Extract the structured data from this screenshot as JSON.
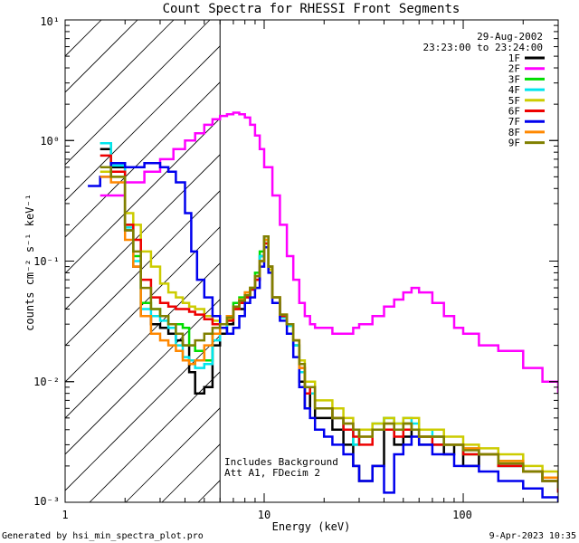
{
  "chart_data": {
    "type": "line",
    "title": "Count Spectra for RHESSI Front Segments",
    "xlabel": "Energy (keV)",
    "ylabel": "counts cm⁻² s⁻¹ keV⁻¹",
    "xscale": "log",
    "yscale": "log",
    "xlim": [
      1,
      300
    ],
    "ylim": [
      0.001,
      10
    ],
    "x_tick_labels": [
      "1",
      "10",
      "100"
    ],
    "y_tick_labels": [
      "10⁻³",
      "10⁻²",
      "10⁻¹",
      "10⁰",
      "10¹"
    ],
    "date": "29-Aug-2002",
    "time_range": "23:23:00 to 23:24:00",
    "annotation_lines": [
      "Includes Background",
      "Att A1, FDecim 2"
    ],
    "hatched_region_max_keV": 6,
    "footer_left": "Generated by hsi_min_spectra_plot.pro",
    "footer_right": "9-Apr-2023 10:35",
    "series": [
      {
        "name": "1F",
        "color": "#000000",
        "x": [
          1.5,
          1.7,
          2.0,
          2.2,
          2.4,
          2.7,
          3.0,
          3.3,
          3.6,
          3.9,
          4.2,
          4.5,
          5.0,
          5.5,
          6.0,
          6.5,
          7.0,
          7.5,
          8.0,
          8.5,
          9.0,
          9.5,
          10.0,
          10.5,
          11.0,
          12.0,
          13.0,
          14,
          15,
          16,
          17,
          18,
          20,
          22,
          25,
          28,
          30,
          35,
          40,
          45,
          50,
          55,
          60,
          70,
          80,
          90,
          100,
          120,
          150,
          200,
          250,
          300
        ],
        "values": [
          0.85,
          0.6,
          0.18,
          0.09,
          0.035,
          0.03,
          0.028,
          0.025,
          0.022,
          0.02,
          0.012,
          0.008,
          0.009,
          0.02,
          0.025,
          0.03,
          0.04,
          0.04,
          0.05,
          0.06,
          0.07,
          0.11,
          0.16,
          0.09,
          0.05,
          0.035,
          0.03,
          0.02,
          0.01,
          0.006,
          0.008,
          0.005,
          0.005,
          0.004,
          0.003,
          0.002,
          0.0015,
          0.002,
          0.004,
          0.003,
          0.0035,
          0.004,
          0.003,
          0.003,
          0.0025,
          0.003,
          0.002,
          0.0025,
          0.002,
          0.0018,
          0.0015,
          0.0012
        ]
      },
      {
        "name": "2F",
        "color": "#ff00ff",
        "x": [
          1.5,
          2.0,
          2.5,
          3.0,
          3.5,
          4.0,
          4.5,
          5.0,
          5.5,
          6.0,
          6.5,
          7.0,
          7.5,
          8.0,
          8.5,
          9.0,
          9.5,
          10,
          11,
          12,
          13,
          14,
          15,
          16,
          17,
          18,
          20,
          22,
          25,
          28,
          30,
          35,
          40,
          45,
          50,
          55,
          60,
          70,
          80,
          90,
          100,
          120,
          150,
          200,
          250,
          300
        ],
        "values": [
          0.35,
          0.45,
          0.55,
          0.7,
          0.85,
          1.0,
          1.15,
          1.35,
          1.5,
          1.6,
          1.65,
          1.7,
          1.65,
          1.55,
          1.35,
          1.1,
          0.85,
          0.6,
          0.35,
          0.2,
          0.11,
          0.07,
          0.045,
          0.035,
          0.03,
          0.028,
          0.028,
          0.025,
          0.025,
          0.028,
          0.03,
          0.035,
          0.042,
          0.048,
          0.055,
          0.06,
          0.055,
          0.045,
          0.035,
          0.028,
          0.025,
          0.02,
          0.018,
          0.013,
          0.01,
          0.008
        ]
      },
      {
        "name": "3F",
        "color": "#00dd00",
        "x": [
          1.5,
          1.7,
          2.0,
          2.2,
          2.4,
          2.7,
          3.0,
          3.3,
          3.6,
          3.9,
          4.2,
          4.5,
          5.0,
          5.5,
          6.0,
          6.5,
          7.0,
          7.5,
          8.0,
          8.5,
          9.0,
          9.5,
          10.0,
          10.5,
          11.0,
          12.0,
          13.0,
          14,
          15,
          16,
          17,
          18,
          20,
          22,
          25,
          28,
          30,
          35,
          40,
          45,
          50,
          55,
          60,
          70,
          80,
          90,
          100,
          120,
          150,
          200,
          250,
          300
        ],
        "values": [
          0.95,
          0.65,
          0.2,
          0.11,
          0.045,
          0.04,
          0.035,
          0.03,
          0.03,
          0.028,
          0.02,
          0.018,
          0.015,
          0.025,
          0.03,
          0.035,
          0.045,
          0.05,
          0.055,
          0.06,
          0.08,
          0.12,
          0.15,
          0.09,
          0.05,
          0.035,
          0.03,
          0.02,
          0.012,
          0.008,
          0.009,
          0.006,
          0.006,
          0.005,
          0.004,
          0.003,
          0.004,
          0.004,
          0.005,
          0.004,
          0.0045,
          0.004,
          0.0035,
          0.0035,
          0.003,
          0.003,
          0.0025,
          0.0025,
          0.0022,
          0.0018,
          0.0016,
          0.0015
        ]
      },
      {
        "name": "4F",
        "color": "#00e5ee",
        "x": [
          1.5,
          1.7,
          2.0,
          2.2,
          2.4,
          2.7,
          3.0,
          3.3,
          3.6,
          3.9,
          4.2,
          4.5,
          5.0,
          5.5,
          6.0,
          6.5,
          7.0,
          7.5,
          8.0,
          8.5,
          9.0,
          9.5,
          10.0,
          10.5,
          11.0,
          12.0,
          13.0,
          14,
          15,
          16,
          17,
          18,
          20,
          22,
          25,
          28,
          30,
          35,
          40,
          45,
          50,
          55,
          60,
          70,
          80,
          90,
          100,
          120,
          150,
          200,
          250,
          300
        ],
        "values": [
          0.95,
          0.62,
          0.19,
          0.1,
          0.04,
          0.035,
          0.032,
          0.028,
          0.02,
          0.016,
          0.015,
          0.013,
          0.014,
          0.022,
          0.028,
          0.032,
          0.042,
          0.046,
          0.05,
          0.058,
          0.075,
          0.11,
          0.14,
          0.09,
          0.05,
          0.034,
          0.029,
          0.02,
          0.012,
          0.008,
          0.008,
          0.006,
          0.006,
          0.005,
          0.004,
          0.003,
          0.004,
          0.0045,
          0.005,
          0.0045,
          0.005,
          0.0045,
          0.004,
          0.0035,
          0.003,
          0.003,
          0.0028,
          0.0025,
          0.002,
          0.0018,
          0.0015,
          0.0013
        ]
      },
      {
        "name": "5F",
        "color": "#cccc00",
        "x": [
          1.5,
          1.7,
          2.0,
          2.2,
          2.4,
          2.7,
          3.0,
          3.3,
          3.6,
          3.9,
          4.2,
          4.5,
          5.0,
          5.5,
          6.0,
          6.5,
          7.0,
          7.5,
          8.0,
          8.5,
          9.0,
          9.5,
          10.0,
          10.5,
          11.0,
          12.0,
          13.0,
          14,
          15,
          16,
          17,
          18,
          20,
          22,
          25,
          28,
          30,
          35,
          40,
          45,
          50,
          55,
          60,
          70,
          80,
          90,
          100,
          120,
          150,
          200,
          250,
          300
        ],
        "values": [
          0.55,
          0.5,
          0.25,
          0.2,
          0.12,
          0.09,
          0.065,
          0.055,
          0.05,
          0.045,
          0.042,
          0.04,
          0.035,
          0.032,
          0.03,
          0.033,
          0.04,
          0.045,
          0.052,
          0.06,
          0.075,
          0.1,
          0.13,
          0.085,
          0.05,
          0.036,
          0.03,
          0.022,
          0.015,
          0.01,
          0.01,
          0.007,
          0.007,
          0.006,
          0.005,
          0.004,
          0.004,
          0.0045,
          0.005,
          0.0045,
          0.005,
          0.005,
          0.004,
          0.004,
          0.0035,
          0.0035,
          0.003,
          0.0028,
          0.0025,
          0.002,
          0.0018,
          0.0016
        ]
      },
      {
        "name": "6F",
        "color": "#ee0000",
        "x": [
          1.5,
          1.7,
          2.0,
          2.2,
          2.4,
          2.7,
          3.0,
          3.3,
          3.6,
          3.9,
          4.2,
          4.5,
          5.0,
          5.5,
          6.0,
          6.5,
          7.0,
          7.5,
          8.0,
          8.5,
          9.0,
          9.5,
          10.0,
          10.5,
          11.0,
          12.0,
          13.0,
          14,
          15,
          16,
          17,
          18,
          20,
          22,
          25,
          28,
          30,
          35,
          40,
          45,
          50,
          55,
          60,
          70,
          80,
          90,
          100,
          120,
          150,
          200,
          250,
          300
        ],
        "values": [
          0.75,
          0.55,
          0.2,
          0.15,
          0.07,
          0.05,
          0.045,
          0.042,
          0.04,
          0.04,
          0.038,
          0.036,
          0.033,
          0.03,
          0.03,
          0.032,
          0.04,
          0.045,
          0.05,
          0.058,
          0.07,
          0.1,
          0.14,
          0.09,
          0.05,
          0.035,
          0.03,
          0.022,
          0.013,
          0.008,
          0.009,
          0.006,
          0.006,
          0.005,
          0.004,
          0.0035,
          0.003,
          0.004,
          0.004,
          0.0035,
          0.004,
          0.004,
          0.0035,
          0.003,
          0.003,
          0.003,
          0.0025,
          0.0025,
          0.002,
          0.0018,
          0.0015,
          0.0012
        ]
      },
      {
        "name": "7F",
        "color": "#0000ee",
        "x": [
          1.3,
          1.5,
          1.7,
          2.0,
          2.2,
          2.5,
          2.8,
          3.0,
          3.3,
          3.6,
          4.0,
          4.3,
          4.6,
          5.0,
          5.5,
          6.0,
          6.5,
          7.0,
          7.5,
          8.0,
          8.5,
          9.0,
          9.5,
          10.0,
          10.5,
          11.0,
          12.0,
          13.0,
          14,
          15,
          16,
          17,
          18,
          20,
          22,
          25,
          28,
          30,
          35,
          40,
          45,
          50,
          55,
          60,
          70,
          80,
          90,
          100,
          120,
          150,
          200,
          250,
          300
        ],
        "values": [
          0.42,
          0.5,
          0.65,
          0.6,
          0.6,
          0.65,
          0.65,
          0.6,
          0.55,
          0.45,
          0.25,
          0.12,
          0.07,
          0.05,
          0.035,
          0.028,
          0.025,
          0.028,
          0.035,
          0.045,
          0.05,
          0.06,
          0.09,
          0.13,
          0.08,
          0.045,
          0.032,
          0.025,
          0.016,
          0.009,
          0.006,
          0.005,
          0.004,
          0.0035,
          0.003,
          0.0025,
          0.002,
          0.0015,
          0.002,
          0.0012,
          0.0025,
          0.003,
          0.0035,
          0.003,
          0.0025,
          0.0025,
          0.002,
          0.002,
          0.0018,
          0.0015,
          0.0013,
          0.0011,
          0.001
        ]
      },
      {
        "name": "8F",
        "color": "#ff8800",
        "x": [
          1.5,
          1.7,
          2.0,
          2.2,
          2.4,
          2.7,
          3.0,
          3.3,
          3.6,
          3.9,
          4.2,
          4.5,
          5.0,
          5.5,
          6.0,
          6.5,
          7.0,
          7.5,
          8.0,
          8.5,
          9.0,
          9.5,
          10.0,
          10.5,
          11.0,
          12.0,
          13.0,
          14,
          15,
          16,
          17,
          18,
          20,
          22,
          25,
          28,
          30,
          35,
          40,
          45,
          50,
          55,
          60,
          70,
          80,
          90,
          100,
          120,
          150,
          200,
          250,
          300
        ],
        "values": [
          0.5,
          0.45,
          0.15,
          0.09,
          0.035,
          0.025,
          0.022,
          0.02,
          0.018,
          0.015,
          0.014,
          0.015,
          0.02,
          0.025,
          0.03,
          0.035,
          0.042,
          0.048,
          0.055,
          0.06,
          0.075,
          0.1,
          0.15,
          0.09,
          0.05,
          0.036,
          0.03,
          0.022,
          0.013,
          0.009,
          0.009,
          0.006,
          0.006,
          0.005,
          0.0045,
          0.004,
          0.0035,
          0.004,
          0.0045,
          0.004,
          0.0045,
          0.004,
          0.0035,
          0.0035,
          0.003,
          0.003,
          0.0028,
          0.0025,
          0.0022,
          0.0018,
          0.0016,
          0.0014
        ]
      },
      {
        "name": "9F",
        "color": "#808000",
        "x": [
          1.5,
          1.7,
          2.0,
          2.2,
          2.4,
          2.7,
          3.0,
          3.3,
          3.6,
          3.9,
          4.2,
          4.5,
          5.0,
          5.5,
          6.0,
          6.5,
          7.0,
          7.5,
          8.0,
          8.5,
          9.0,
          9.5,
          10.0,
          10.5,
          11.0,
          12.0,
          13.0,
          14,
          15,
          16,
          17,
          18,
          20,
          22,
          25,
          28,
          30,
          35,
          40,
          45,
          50,
          55,
          60,
          70,
          80,
          90,
          100,
          120,
          150,
          200,
          250,
          300
        ],
        "values": [
          0.6,
          0.5,
          0.18,
          0.12,
          0.06,
          0.04,
          0.035,
          0.03,
          0.025,
          0.02,
          0.02,
          0.022,
          0.025,
          0.028,
          0.03,
          0.034,
          0.042,
          0.047,
          0.052,
          0.06,
          0.075,
          0.1,
          0.16,
          0.09,
          0.05,
          0.036,
          0.03,
          0.022,
          0.014,
          0.009,
          0.009,
          0.006,
          0.006,
          0.005,
          0.0045,
          0.004,
          0.0035,
          0.004,
          0.0045,
          0.004,
          0.0045,
          0.004,
          0.0035,
          0.0035,
          0.003,
          0.003,
          0.0027,
          0.0025,
          0.0021,
          0.0018,
          0.0015,
          0.0013
        ]
      }
    ]
  }
}
